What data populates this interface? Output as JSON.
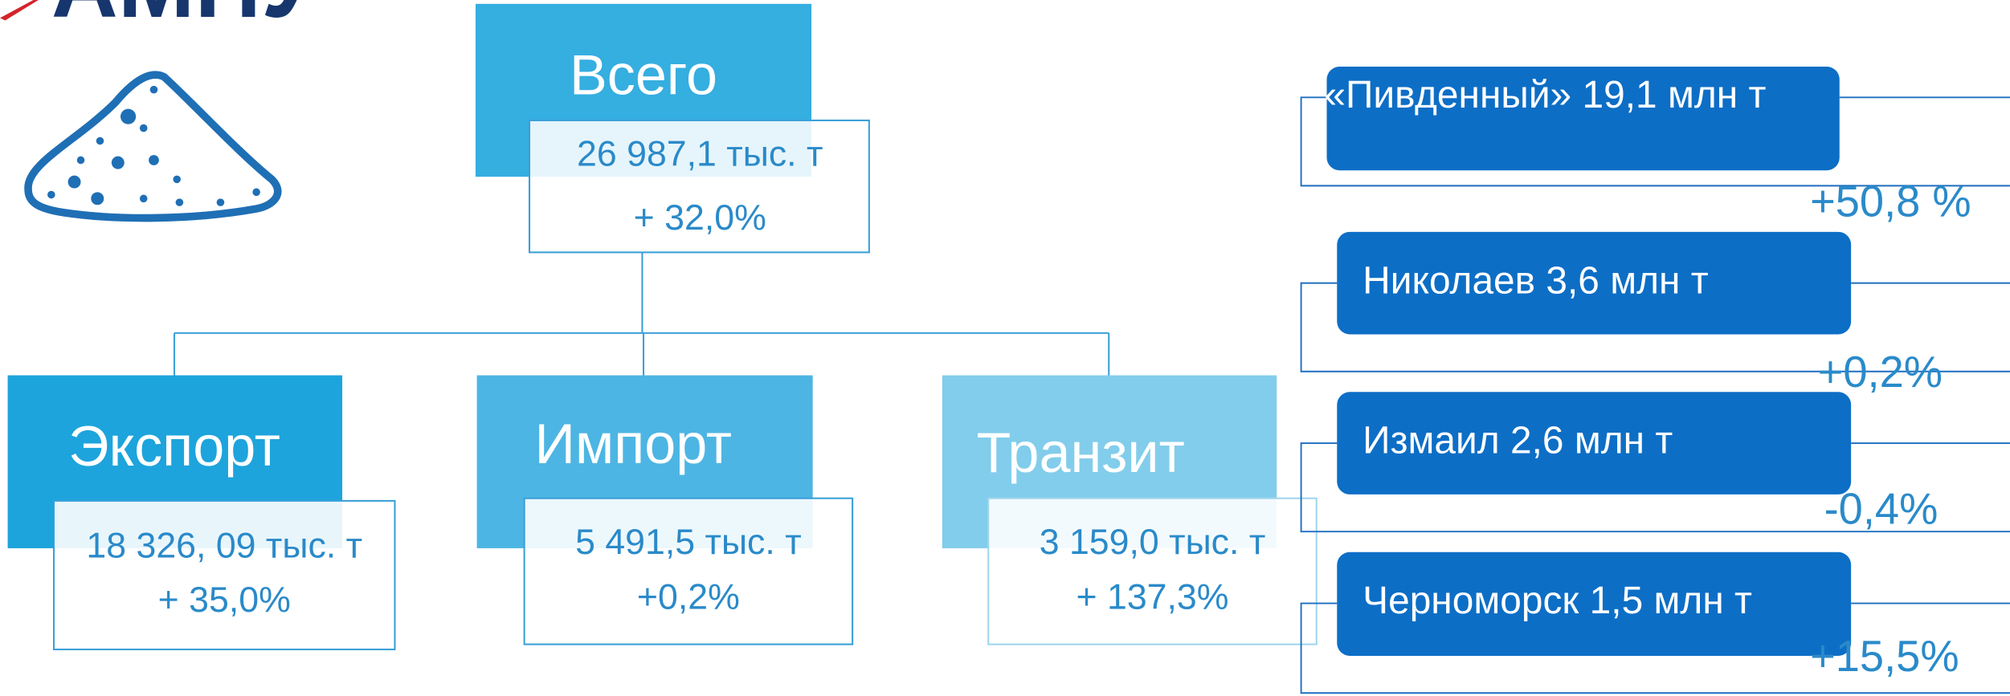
{
  "logo": "АМПУ",
  "total": {
    "title": "Всего",
    "value": "26 987,1 тыс. т",
    "change": "+ 32,0%"
  },
  "children": [
    {
      "title": "Экспорт",
      "value": "18 326, 09 тыс. т",
      "change": "+ 35,0%"
    },
    {
      "title": "Импорт",
      "value": "5 491,5 тыс. т",
      "change": "+0,2%"
    },
    {
      "title": "Транзит",
      "value": "3 159,0 тыс. т",
      "change": "+ 137,3%"
    }
  ],
  "ports": [
    {
      "name": "«Пивденный» 19,1 млн т",
      "change": "+50,8 %"
    },
    {
      "name": "Николаев 3,6 млн т",
      "change": "+0,2%"
    },
    {
      "name": "Измаил 2,6 млн т",
      "change": "-0,4%"
    },
    {
      "name": "Черноморск 1,5 млн т",
      "change": "+15,5%"
    }
  ]
}
